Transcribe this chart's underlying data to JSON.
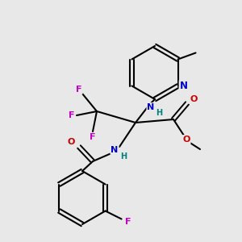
{
  "background_color": "#e8e8e8",
  "bond_color": "#000000",
  "atom_colors": {
    "N": "#0000cc",
    "NH": "#008080",
    "O": "#cc0000",
    "F": "#cc00cc",
    "C": "#000000"
  },
  "figsize": [
    3.0,
    3.0
  ],
  "dpi": 100,
  "xlim": [
    0,
    300
  ],
  "ylim": [
    0,
    300
  ]
}
